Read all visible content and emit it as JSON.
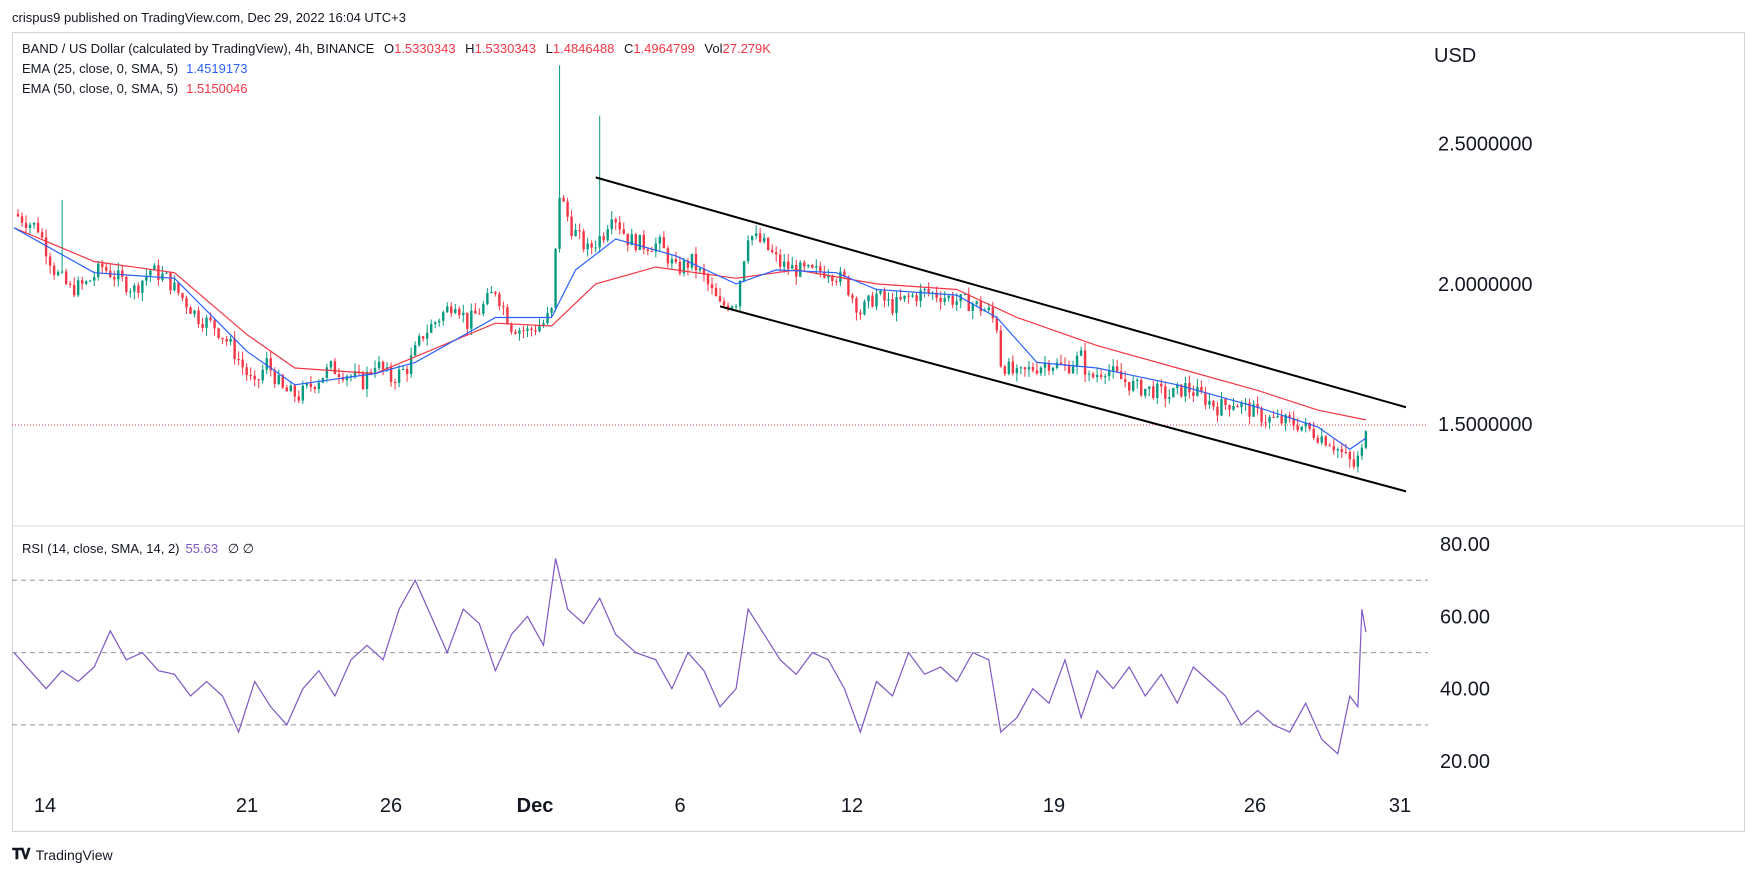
{
  "header": {
    "published": "crispus9 published on TradingView.com, Dec 29, 2022 16:04 UTC+3"
  },
  "legend": {
    "symbol": "BAND / US Dollar (calculated by TradingView), 4h, BINANCE",
    "open_label": "O",
    "open": "1.5330343",
    "high_label": "H",
    "high": "1.5330343",
    "low_label": "L",
    "low": "1.4846488",
    "close_label": "C",
    "close": "1.4964799",
    "vol_label": "Vol",
    "vol": "27.279K",
    "ema25_label": "EMA (25, close, 0, SMA, 5)",
    "ema25_value": "1.4519173",
    "ema50_label": "EMA (50, close, 0, SMA, 5)",
    "ema50_value": "1.5150046",
    "rsi_label": "RSI (14, close, SMA, 14, 2)",
    "rsi_value": "55.63",
    "rsi_extra": "∅ ∅"
  },
  "footer": {
    "brand": "TradingView"
  },
  "colors": {
    "up": "#089981",
    "down": "#f23645",
    "ema25": "#2962ff",
    "ema50": "#f23645",
    "rsi": "#7e57c2",
    "channel": "#000000"
  },
  "chart_data": [
    {
      "type": "candlestick",
      "title": "BAND / US Dollar (calculated by TradingView), 4h, BINANCE",
      "currency_label": "USD",
      "ylim": [
        1.14,
        2.87
      ],
      "y_ticks": [
        "2.5000000",
        "2.0000000",
        "1.5000000"
      ],
      "y_tick_values": [
        2.5,
        2.0,
        1.5
      ],
      "x_ticks": [
        "14",
        "21",
        "26",
        "Dec",
        "6",
        "12",
        "19",
        "26",
        "31"
      ],
      "last_price": 1.4965,
      "close_path": [
        [
          0,
          2.25
        ],
        [
          6,
          2.2
        ],
        [
          10,
          2.05
        ],
        [
          14,
          1.98
        ],
        [
          18,
          2.0
        ],
        [
          22,
          2.06
        ],
        [
          26,
          2.02
        ],
        [
          30,
          1.98
        ],
        [
          34,
          2.05
        ],
        [
          38,
          2.02
        ],
        [
          42,
          1.95
        ],
        [
          46,
          1.88
        ],
        [
          50,
          1.85
        ],
        [
          54,
          1.78
        ],
        [
          58,
          1.68
        ],
        [
          60,
          1.63
        ],
        [
          63,
          1.72
        ],
        [
          67,
          1.62
        ],
        [
          71,
          1.6
        ],
        [
          75,
          1.65
        ],
        [
          79,
          1.7
        ],
        [
          83,
          1.68
        ],
        [
          87,
          1.65
        ],
        [
          90,
          1.72
        ],
        [
          94,
          1.66
        ],
        [
          98,
          1.7
        ],
        [
          102,
          1.82
        ],
        [
          106,
          1.88
        ],
        [
          110,
          1.94
        ],
        [
          113,
          1.86
        ],
        [
          117,
          1.92
        ],
        [
          120,
          1.98
        ],
        [
          124,
          1.85
        ],
        [
          128,
          1.83
        ],
        [
          132,
          1.86
        ],
        [
          134,
          1.9
        ],
        [
          136,
          2.32
        ],
        [
          139,
          2.2
        ],
        [
          143,
          2.12
        ],
        [
          147,
          2.18
        ],
        [
          149,
          2.26
        ],
        [
          153,
          2.16
        ],
        [
          157,
          2.14
        ],
        [
          161,
          2.14
        ],
        [
          165,
          2.05
        ],
        [
          169,
          2.08
        ],
        [
          172,
          2.02
        ],
        [
          176,
          1.92
        ],
        [
          180,
          1.94
        ],
        [
          183,
          2.18
        ],
        [
          187,
          2.14
        ],
        [
          191,
          2.07
        ],
        [
          195,
          2.05
        ],
        [
          199,
          2.04
        ],
        [
          203,
          2.05
        ],
        [
          207,
          2.01
        ],
        [
          211,
          1.9
        ],
        [
          215,
          1.96
        ],
        [
          219,
          1.92
        ],
        [
          223,
          1.95
        ],
        [
          227,
          1.97
        ],
        [
          231,
          1.96
        ],
        [
          235,
          1.94
        ],
        [
          239,
          1.93
        ],
        [
          243,
          1.9
        ],
        [
          245,
          1.85
        ],
        [
          246,
          1.72
        ],
        [
          250,
          1.67
        ],
        [
          254,
          1.7
        ],
        [
          258,
          1.72
        ],
        [
          262,
          1.7
        ],
        [
          266,
          1.74
        ],
        [
          268,
          1.66
        ],
        [
          272,
          1.7
        ],
        [
          276,
          1.66
        ],
        [
          280,
          1.63
        ],
        [
          284,
          1.62
        ],
        [
          288,
          1.6
        ],
        [
          292,
          1.63
        ],
        [
          296,
          1.6
        ],
        [
          300,
          1.56
        ],
        [
          304,
          1.58
        ],
        [
          308,
          1.55
        ],
        [
          312,
          1.52
        ],
        [
          316,
          1.51
        ],
        [
          320,
          1.5
        ],
        [
          324,
          1.47
        ],
        [
          328,
          1.44
        ],
        [
          332,
          1.38
        ],
        [
          334,
          1.35
        ],
        [
          336,
          1.4
        ],
        [
          337,
          1.5
        ]
      ],
      "wick_spikes": [
        [
          136,
          2.78
        ],
        [
          146,
          2.6
        ],
        [
          12,
          2.3
        ]
      ],
      "ema25_path": [
        [
          0,
          2.2
        ],
        [
          20,
          2.04
        ],
        [
          40,
          2.02
        ],
        [
          58,
          1.76
        ],
        [
          70,
          1.64
        ],
        [
          90,
          1.68
        ],
        [
          100,
          1.72
        ],
        [
          120,
          1.88
        ],
        [
          134,
          1.88
        ],
        [
          140,
          2.05
        ],
        [
          150,
          2.16
        ],
        [
          165,
          2.1
        ],
        [
          180,
          2.0
        ],
        [
          190,
          2.05
        ],
        [
          205,
          2.04
        ],
        [
          215,
          1.98
        ],
        [
          235,
          1.96
        ],
        [
          245,
          1.88
        ],
        [
          255,
          1.72
        ],
        [
          270,
          1.7
        ],
        [
          290,
          1.64
        ],
        [
          310,
          1.56
        ],
        [
          325,
          1.49
        ],
        [
          333,
          1.41
        ],
        [
          337,
          1.45
        ]
      ],
      "ema50_path": [
        [
          0,
          2.2
        ],
        [
          20,
          2.08
        ],
        [
          40,
          2.04
        ],
        [
          58,
          1.82
        ],
        [
          70,
          1.7
        ],
        [
          90,
          1.68
        ],
        [
          100,
          1.74
        ],
        [
          120,
          1.86
        ],
        [
          134,
          1.85
        ],
        [
          145,
          2.0
        ],
        [
          160,
          2.06
        ],
        [
          180,
          2.02
        ],
        [
          195,
          2.05
        ],
        [
          215,
          2.0
        ],
        [
          235,
          1.98
        ],
        [
          250,
          1.88
        ],
        [
          270,
          1.78
        ],
        [
          290,
          1.7
        ],
        [
          310,
          1.62
        ],
        [
          325,
          1.55
        ],
        [
          337,
          1.515
        ]
      ],
      "channel_lines": [
        {
          "from": [
            145,
            2.38
          ],
          "to": [
            347,
            1.56
          ]
        },
        {
          "from": [
            176,
            1.92
          ],
          "to": [
            347,
            1.26
          ]
        }
      ]
    },
    {
      "type": "line",
      "title": "RSI (14, close, SMA, 14, 2)",
      "ylim": [
        12,
        85
      ],
      "y_ticks": [
        "80.00",
        "60.00",
        "40.00",
        "20.00"
      ],
      "y_tick_values": [
        80,
        60,
        40,
        20
      ],
      "bands": [
        70,
        50,
        30
      ],
      "last_value": 55.63,
      "series": [
        [
          0,
          50
        ],
        [
          4,
          45
        ],
        [
          8,
          40
        ],
        [
          12,
          45
        ],
        [
          16,
          42
        ],
        [
          20,
          46
        ],
        [
          24,
          56
        ],
        [
          28,
          48
        ],
        [
          32,
          50
        ],
        [
          36,
          45
        ],
        [
          40,
          44
        ],
        [
          44,
          38
        ],
        [
          48,
          42
        ],
        [
          52,
          38
        ],
        [
          56,
          28
        ],
        [
          60,
          42
        ],
        [
          64,
          35
        ],
        [
          68,
          30
        ],
        [
          72,
          40
        ],
        [
          76,
          45
        ],
        [
          80,
          38
        ],
        [
          84,
          48
        ],
        [
          88,
          52
        ],
        [
          92,
          48
        ],
        [
          96,
          62
        ],
        [
          100,
          70
        ],
        [
          104,
          60
        ],
        [
          108,
          50
        ],
        [
          112,
          62
        ],
        [
          116,
          58
        ],
        [
          120,
          45
        ],
        [
          124,
          55
        ],
        [
          128,
          60
        ],
        [
          132,
          52
        ],
        [
          135,
          76
        ],
        [
          138,
          62
        ],
        [
          142,
          58
        ],
        [
          146,
          65
        ],
        [
          150,
          55
        ],
        [
          155,
          50
        ],
        [
          160,
          48
        ],
        [
          164,
          40
        ],
        [
          168,
          50
        ],
        [
          172,
          45
        ],
        [
          176,
          35
        ],
        [
          180,
          40
        ],
        [
          183,
          62
        ],
        [
          187,
          55
        ],
        [
          191,
          48
        ],
        [
          195,
          44
        ],
        [
          199,
          50
        ],
        [
          203,
          48
        ],
        [
          207,
          40
        ],
        [
          211,
          28
        ],
        [
          215,
          42
        ],
        [
          219,
          38
        ],
        [
          223,
          50
        ],
        [
          227,
          44
        ],
        [
          231,
          46
        ],
        [
          235,
          42
        ],
        [
          239,
          50
        ],
        [
          243,
          48
        ],
        [
          246,
          28
        ],
        [
          250,
          32
        ],
        [
          254,
          40
        ],
        [
          258,
          36
        ],
        [
          262,
          48
        ],
        [
          266,
          32
        ],
        [
          270,
          45
        ],
        [
          274,
          40
        ],
        [
          278,
          46
        ],
        [
          282,
          38
        ],
        [
          286,
          44
        ],
        [
          290,
          36
        ],
        [
          294,
          46
        ],
        [
          298,
          42
        ],
        [
          302,
          38
        ],
        [
          306,
          30
        ],
        [
          310,
          34
        ],
        [
          314,
          30
        ],
        [
          318,
          28
        ],
        [
          322,
          36
        ],
        [
          326,
          26
        ],
        [
          330,
          22
        ],
        [
          333,
          38
        ],
        [
          335,
          35
        ],
        [
          336,
          62
        ],
        [
          337,
          55.63
        ]
      ]
    }
  ]
}
